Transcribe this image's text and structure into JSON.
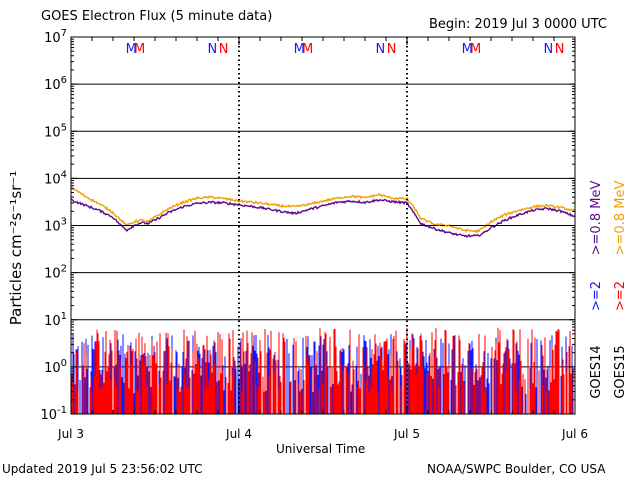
{
  "header": {
    "title": "GOES Electron Flux (5 minute data)",
    "begin": "Begin: 2019 Jul 3 0000 UTC"
  },
  "footer": {
    "updated": "Updated 2019 Jul  5 23:56:02 UTC",
    "credit": "NOAA/SWPC Boulder, CO USA"
  },
  "colors": {
    "goes14_gt08": "#5a0a8c",
    "goes15_gt08": "#f0a000",
    "goes14_gt2": "#0a1aff",
    "goes15_gt2": "#ff0000",
    "threshold": "#000000",
    "marker_m_goes14": "#1a1aff",
    "marker_m_goes15": "#ff0000"
  },
  "chart_data": {
    "type": "line",
    "title": "GOES Electron Flux (5 minute data)",
    "xlabel": "Universal Time",
    "ylabel": "Particles cm⁻²s⁻¹sr⁻¹",
    "yscale": "log",
    "ylim": [
      0.1,
      10000000
    ],
    "xlim": [
      0,
      72
    ],
    "x_unit": "hours since 2019 Jul 3 0000 UTC",
    "x_tick_labels": [
      "Jul 3",
      "Jul 4",
      "Jul 5",
      "Jul 6"
    ],
    "x_ticks": [
      0,
      24,
      48,
      72
    ],
    "y_ticks": [
      0.1,
      1,
      10,
      100,
      1000,
      10000,
      100000,
      1000000,
      10000000
    ],
    "y_tick_labels": [
      {
        "base": "10",
        "exp": "-1"
      },
      {
        "base": "10",
        "exp": "0"
      },
      {
        "base": "10",
        "exp": "1"
      },
      {
        "base": "10",
        "exp": "2"
      },
      {
        "base": "10",
        "exp": "3"
      },
      {
        "base": "10",
        "exp": "4"
      },
      {
        "base": "10",
        "exp": "5"
      },
      {
        "base": "10",
        "exp": "6"
      },
      {
        "base": "10",
        "exp": "7"
      }
    ],
    "threshold": 1000,
    "midnight_markers": [
      {
        "label": "M",
        "x": 8.6,
        "color": "#1a1aff"
      },
      {
        "label": "M",
        "x": 9.8,
        "color": "#ff0000"
      },
      {
        "label": "N",
        "x": 20.2,
        "color": "#1a1aff"
      },
      {
        "label": "N",
        "x": 21.8,
        "color": "#ff0000"
      },
      {
        "label": "M",
        "x": 32.6,
        "color": "#1a1aff"
      },
      {
        "label": "M",
        "x": 33.8,
        "color": "#ff0000"
      },
      {
        "label": "N",
        "x": 44.2,
        "color": "#1a1aff"
      },
      {
        "label": "N",
        "x": 45.8,
        "color": "#ff0000"
      },
      {
        "label": "M",
        "x": 56.6,
        "color": "#1a1aff"
      },
      {
        "label": "M",
        "x": 57.8,
        "color": "#ff0000"
      },
      {
        "label": "N",
        "x": 68.2,
        "color": "#1a1aff"
      },
      {
        "label": "N",
        "x": 69.8,
        "color": "#ff0000"
      }
    ],
    "legend": {
      "right_labels": [
        {
          "text": ">=0.8  MeV",
          "color": "#5a0a8c"
        },
        {
          "text": ">=0.8  MeV",
          "color": "#f0a000"
        },
        {
          "text": ">=2",
          "color": "#0a1aff"
        },
        {
          "text": ">=2",
          "color": "#ff0000"
        },
        {
          "text": "GOES14",
          "color": "#000000"
        },
        {
          "text": "GOES15",
          "color": "#000000"
        }
      ]
    },
    "series": [
      {
        "name": "GOES14 >=0.8 MeV",
        "color": "#5a0a8c",
        "x": [
          0,
          2,
          4,
          6,
          7,
          8,
          9,
          10,
          11,
          12,
          14,
          16,
          18,
          20,
          22,
          24,
          27,
          30,
          32,
          34,
          36,
          38,
          40,
          42,
          44,
          46,
          48,
          49,
          50,
          52,
          54,
          56,
          58,
          59,
          60,
          62,
          64,
          66,
          68,
          70,
          72
        ],
        "y": [
          3500,
          2700,
          2100,
          1500,
          1050,
          800,
          1000,
          1150,
          1100,
          1300,
          1900,
          2500,
          2950,
          3100,
          3000,
          2750,
          2400,
          2000,
          1800,
          2200,
          2600,
          3100,
          3300,
          3100,
          3500,
          3200,
          3000,
          1800,
          1100,
          850,
          700,
          600,
          600,
          700,
          900,
          1300,
          1700,
          2100,
          2300,
          2000,
          1550
        ]
      },
      {
        "name": "GOES15 >=0.8 MeV",
        "color": "#f0a000",
        "x": [
          0,
          2,
          4,
          6,
          7,
          8,
          9,
          10,
          11,
          12,
          14,
          16,
          18,
          20,
          22,
          24,
          27,
          30,
          32,
          34,
          36,
          38,
          40,
          42,
          44,
          46,
          48,
          49,
          50,
          52,
          54,
          56,
          58,
          59,
          60,
          62,
          64,
          66,
          68,
          70,
          72
        ],
        "y": [
          6500,
          4200,
          2900,
          1900,
          1350,
          1000,
          1200,
          1300,
          1200,
          1500,
          2300,
          3100,
          3800,
          4000,
          3700,
          3300,
          3000,
          2600,
          2500,
          2800,
          3300,
          3800,
          4200,
          3900,
          4500,
          3800,
          3700,
          2400,
          1400,
          1050,
          1000,
          800,
          750,
          900,
          1200,
          1700,
          2100,
          2500,
          2650,
          2400,
          2050
        ]
      },
      {
        "name": "GOES14 >=2",
        "color": "#0a1aff",
        "render": "noise",
        "level_range": [
          0.1,
          5
        ],
        "x": [
          0,
          72
        ],
        "y": [
          0.1,
          5
        ]
      },
      {
        "name": "GOES15 >=2",
        "color": "#ff0000",
        "render": "noise",
        "level_range": [
          0.1,
          7
        ],
        "x": [
          0,
          72
        ],
        "y": [
          0.1,
          7
        ]
      }
    ]
  }
}
